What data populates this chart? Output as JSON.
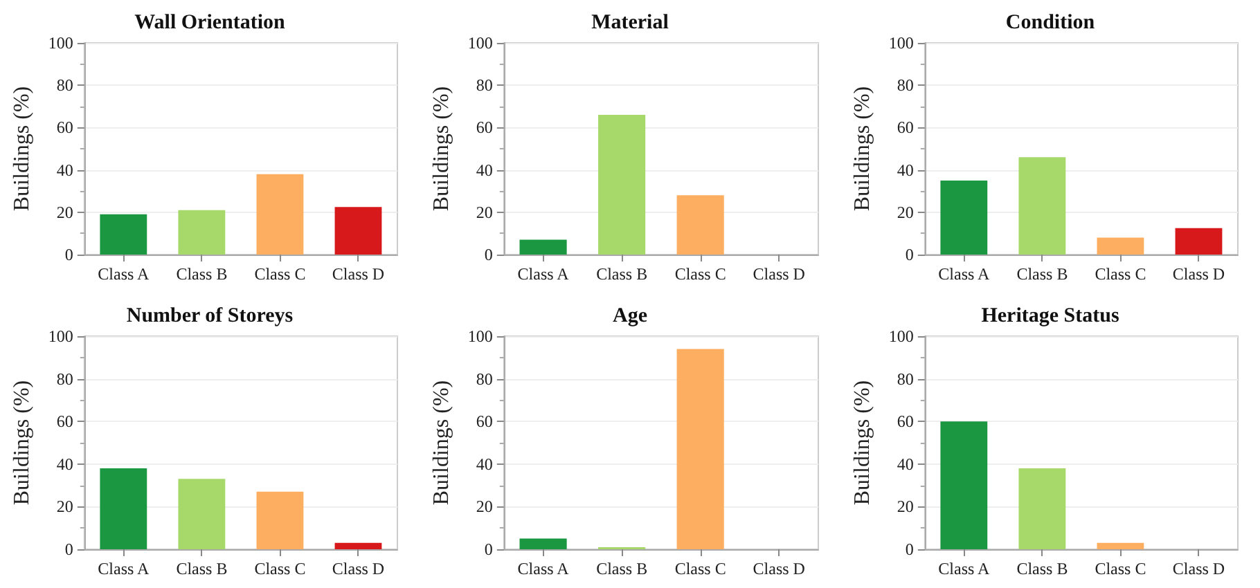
{
  "chart_data": [
    {
      "type": "bar",
      "title": "Wall Orientation",
      "ylabel": "Buildings (%)",
      "categories": [
        "Class A",
        "Class B",
        "Class C",
        "Class D"
      ],
      "values": [
        19,
        21,
        38,
        22.5
      ],
      "colors": [
        "#1b9641",
        "#a6d96a",
        "#fdae61",
        "#d7191c"
      ],
      "ylim": [
        0,
        100
      ],
      "yticks": [
        0,
        20,
        40,
        60,
        80,
        100
      ],
      "grid": "y"
    },
    {
      "type": "bar",
      "title": "Material",
      "ylabel": "Buildings (%)",
      "categories": [
        "Class A",
        "Class B",
        "Class C",
        "Class D"
      ],
      "values": [
        7,
        66,
        28,
        0
      ],
      "colors": [
        "#1b9641",
        "#a6d96a",
        "#fdae61",
        "#d7191c"
      ],
      "ylim": [
        0,
        100
      ],
      "yticks": [
        0,
        20,
        40,
        60,
        80,
        100
      ],
      "grid": "y"
    },
    {
      "type": "bar",
      "title": "Condition",
      "ylabel": "Buildings (%)",
      "categories": [
        "Class A",
        "Class B",
        "Class C",
        "Class D"
      ],
      "values": [
        35,
        46,
        8,
        12.5
      ],
      "colors": [
        "#1b9641",
        "#a6d96a",
        "#fdae61",
        "#d7191c"
      ],
      "ylim": [
        0,
        100
      ],
      "yticks": [
        0,
        20,
        40,
        60,
        80,
        100
      ],
      "grid": "y"
    },
    {
      "type": "bar",
      "title": "Number of Storeys",
      "ylabel": "Buildings (%)",
      "categories": [
        "Class A",
        "Class B",
        "Class C",
        "Class D"
      ],
      "values": [
        38,
        33,
        27,
        3
      ],
      "colors": [
        "#1b9641",
        "#a6d96a",
        "#fdae61",
        "#d7191c"
      ],
      "ylim": [
        0,
        100
      ],
      "yticks": [
        0,
        20,
        40,
        60,
        80,
        100
      ],
      "grid": "y"
    },
    {
      "type": "bar",
      "title": "Age",
      "ylabel": "Buildings (%)",
      "categories": [
        "Class A",
        "Class B",
        "Class C",
        "Class D"
      ],
      "values": [
        5,
        1,
        94,
        0
      ],
      "colors": [
        "#1b9641",
        "#a6d96a",
        "#fdae61",
        "#d7191c"
      ],
      "ylim": [
        0,
        100
      ],
      "yticks": [
        0,
        20,
        40,
        60,
        80,
        100
      ],
      "grid": "y"
    },
    {
      "type": "bar",
      "title": "Heritage Status",
      "ylabel": "Buildings (%)",
      "categories": [
        "Class A",
        "Class B",
        "Class C",
        "Class D"
      ],
      "values": [
        60,
        38,
        3,
        0
      ],
      "colors": [
        "#1b9641",
        "#a6d96a",
        "#fdae61",
        "#d7191c"
      ],
      "ylim": [
        0,
        100
      ],
      "yticks": [
        0,
        20,
        40,
        60,
        80,
        100
      ],
      "grid": "y"
    }
  ]
}
